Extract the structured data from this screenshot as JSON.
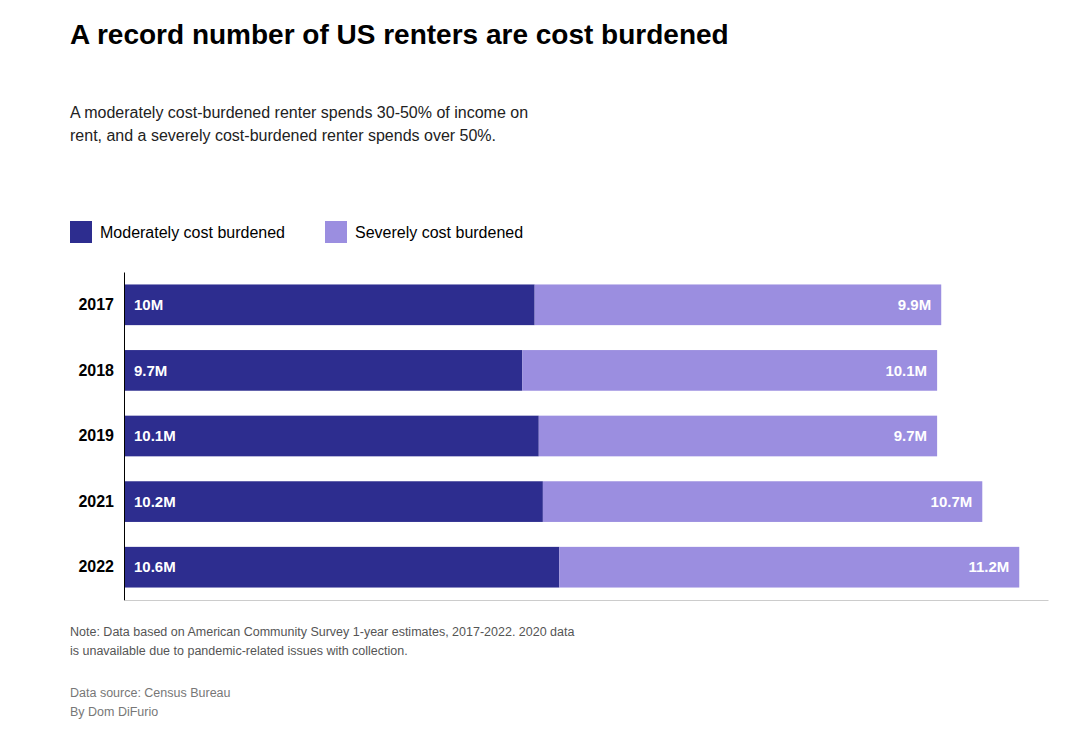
{
  "chart_data": {
    "type": "bar",
    "orientation": "horizontal",
    "stacked": true,
    "data_labels": true,
    "tick_labels": "y",
    "grid": false,
    "legend": "top-left",
    "title": "A record number of US renters are cost burdened",
    "subtitle": "A moderately cost-burdened renter spends 30-50% of income on\nrent, and a severely cost-burdened renter spends over 50%.",
    "annotations": [
      "Note: Data based on American Community Survey 1-year estimates, 2017-2022. 2020 data\nis unavailable due to pandemic-related issues with collection.",
      "Data source: Census Bureau\nBy Dom DiFurio"
    ],
    "categories": [
      "2017",
      "2018",
      "2019",
      "2021",
      "2022"
    ],
    "series": [
      {
        "name": "Moderately cost burdened",
        "color": "#2d2d8f",
        "values": [
          10.0,
          9.7,
          10.1,
          10.2,
          10.6
        ],
        "value_labels": [
          "10M",
          "9.7M",
          "10.1M",
          "10.2M",
          "10.6M"
        ]
      },
      {
        "name": "Severely cost burdened",
        "color": "#9b8ee0",
        "values": [
          9.9,
          10.1,
          9.7,
          10.7,
          11.2
        ],
        "value_labels": [
          "9.9M",
          "10.1M",
          "9.7M",
          "10.7M",
          "11.2M"
        ]
      }
    ],
    "xlim": [
      0,
      22.5
    ]
  }
}
